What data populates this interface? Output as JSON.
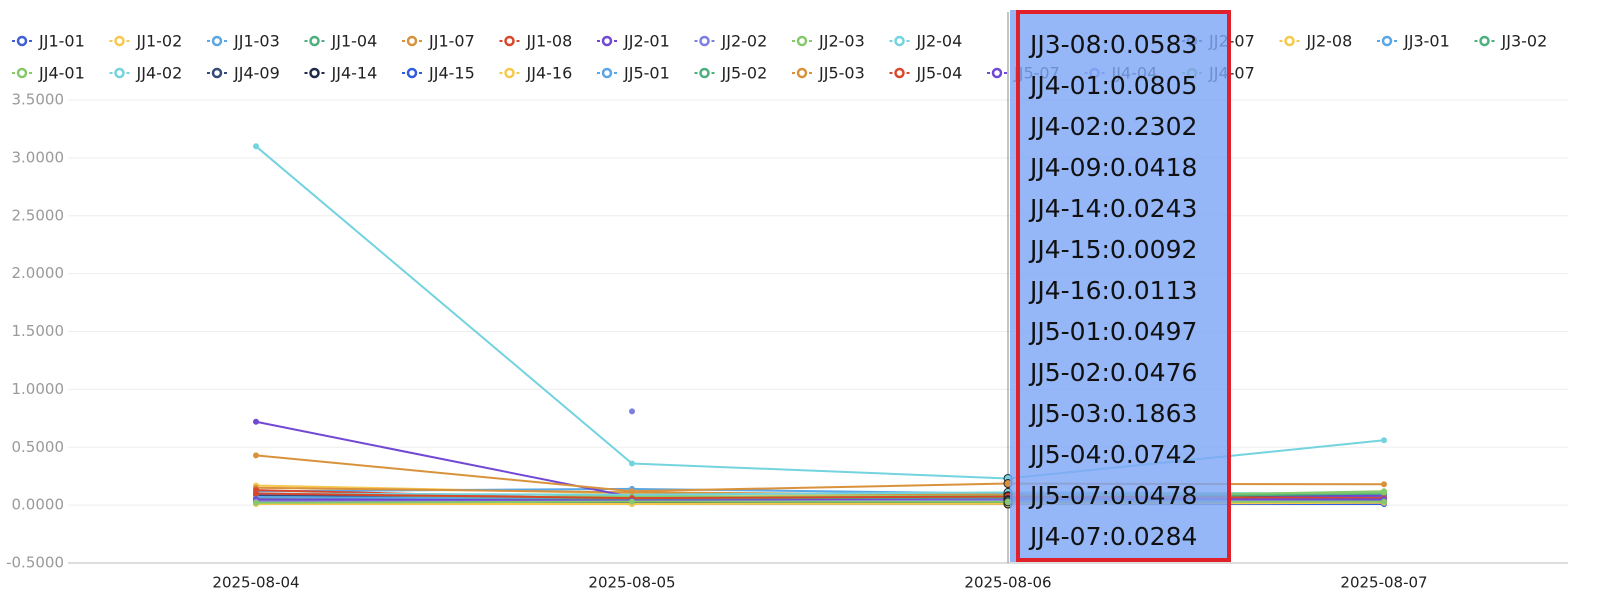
{
  "chart_data": {
    "type": "line",
    "categories": [
      "2025-08-04",
      "2025-08-05",
      "2025-08-06",
      "2025-08-07"
    ],
    "ylim": [
      -0.5,
      3.5
    ],
    "yticks": [
      {
        "value": -0.5,
        "label": "-0.5000"
      },
      {
        "value": 0,
        "label": "0.0000"
      },
      {
        "value": 0.5,
        "label": "0.5000"
      },
      {
        "value": 1,
        "label": "1.0000"
      },
      {
        "value": 1.5,
        "label": "1.5000"
      },
      {
        "value": 2,
        "label": "2.0000"
      },
      {
        "value": 2.5,
        "label": "2.5000"
      },
      {
        "value": 3,
        "label": "3.0000"
      },
      {
        "value": 3.5,
        "label": "3.5000"
      }
    ],
    "grid": true,
    "series": [
      {
        "name": "JJ1-01",
        "color": "#3f5fd8",
        "values": [
          0.09,
          0.05,
          0.06,
          0.05
        ]
      },
      {
        "name": "JJ1-02",
        "color": "#f7c84f",
        "values": [
          0.17,
          0.1,
          0.08,
          0.07
        ]
      },
      {
        "name": "JJ1-03",
        "color": "#5aa6e6",
        "values": [
          0.12,
          0.14,
          0.1,
          0.09
        ]
      },
      {
        "name": "JJ1-04",
        "color": "#4caf7d",
        "values": [
          0.06,
          0.04,
          0.05,
          0.08
        ]
      },
      {
        "name": "JJ1-07",
        "color": "#d9923c",
        "values": [
          0.15,
          0.11,
          0.09,
          0.06
        ]
      },
      {
        "name": "JJ1-08",
        "color": "#d9472b",
        "values": [
          0.13,
          0.05,
          0.07,
          0.04
        ]
      },
      {
        "name": "JJ2-01",
        "color": "#7048d4",
        "values": [
          0.72,
          0.07,
          0.07,
          0.08
        ]
      },
      {
        "name": "JJ2-02",
        "color": "#7b7fe0",
        "values": [
          null,
          0.81,
          null,
          null
        ]
      },
      {
        "name": "JJ2-03",
        "color": "#86c96b",
        "values": [
          0.05,
          0.08,
          0.06,
          0.12
        ]
      },
      {
        "name": "JJ2-04",
        "color": "#73d3de",
        "values": [
          0.1,
          0.09,
          0.11,
          0.1
        ]
      },
      {
        "name": "JJ2-07",
        "color": "#334a7a",
        "values": [
          0.08,
          0.06,
          0.05,
          0.1
        ]
      },
      {
        "name": "JJ2-08",
        "color": "#f5c94a",
        "values": [
          0.02,
          0.02,
          0.03,
          0.02
        ]
      },
      {
        "name": "JJ3-01",
        "color": "#5aa6e6",
        "values": [
          0.04,
          0.03,
          0.04,
          0.01
        ]
      },
      {
        "name": "JJ3-02",
        "color": "#4caf7d",
        "values": [
          0.07,
          0.05,
          0.06,
          0.1
        ]
      },
      {
        "name": "JJ4-01",
        "color": "#86c96b",
        "values": [
          0.06,
          0.07,
          0.0805,
          0.11
        ]
      },
      {
        "name": "JJ4-02",
        "color": "#73d3de",
        "values": [
          3.1,
          0.36,
          0.2302,
          0.56
        ]
      },
      {
        "name": "JJ4-09",
        "color": "#334a7a",
        "values": [
          0.05,
          0.04,
          0.0418,
          0.05
        ]
      },
      {
        "name": "JJ4-14",
        "color": "#1e2a4a",
        "values": [
          0.03,
          0.02,
          0.0243,
          0.03
        ]
      },
      {
        "name": "JJ4-15",
        "color": "#2f5de0",
        "values": [
          0.02,
          0.01,
          0.0092,
          0.01
        ]
      },
      {
        "name": "JJ4-16",
        "color": "#f5c94a",
        "values": [
          0.01,
          0.01,
          0.0113,
          0.02
        ]
      },
      {
        "name": "JJ5-01",
        "color": "#5aa6e6",
        "values": [
          0.07,
          0.05,
          0.0497,
          0.06
        ]
      },
      {
        "name": "JJ5-02",
        "color": "#4caf7d",
        "values": [
          0.04,
          0.05,
          0.0476,
          0.05
        ]
      },
      {
        "name": "JJ5-03",
        "color": "#d9923c",
        "values": [
          0.43,
          0.12,
          0.1863,
          0.18
        ]
      },
      {
        "name": "JJ5-04",
        "color": "#d9472b",
        "values": [
          0.1,
          0.06,
          0.0742,
          0.06
        ]
      },
      {
        "name": "JJ5-07",
        "color": "#7048d4",
        "values": [
          0.05,
          0.04,
          0.0478,
          0.05
        ]
      },
      {
        "name": "JJ4-04",
        "color": "#8b7fe8",
        "values": [
          0.03,
          0.03,
          0.04,
          0.03
        ]
      },
      {
        "name": "JJ4-07",
        "color": "#86c96b",
        "values": [
          0.02,
          0.03,
          0.0284,
          0.03
        ]
      }
    ],
    "tooltip": [
      "JJ3-08:0.0583",
      "JJ4-01:0.0805",
      "JJ4-02:0.2302",
      "JJ4-09:0.0418",
      "JJ4-14:0.0243",
      "JJ4-15:0.0092",
      "JJ4-16:0.0113",
      "JJ5-01:0.0497",
      "JJ5-02:0.0476",
      "JJ5-03:0.1863",
      "JJ5-04:0.0742",
      "JJ5-07:0.0478",
      "JJ4-07:0.0284"
    ]
  }
}
